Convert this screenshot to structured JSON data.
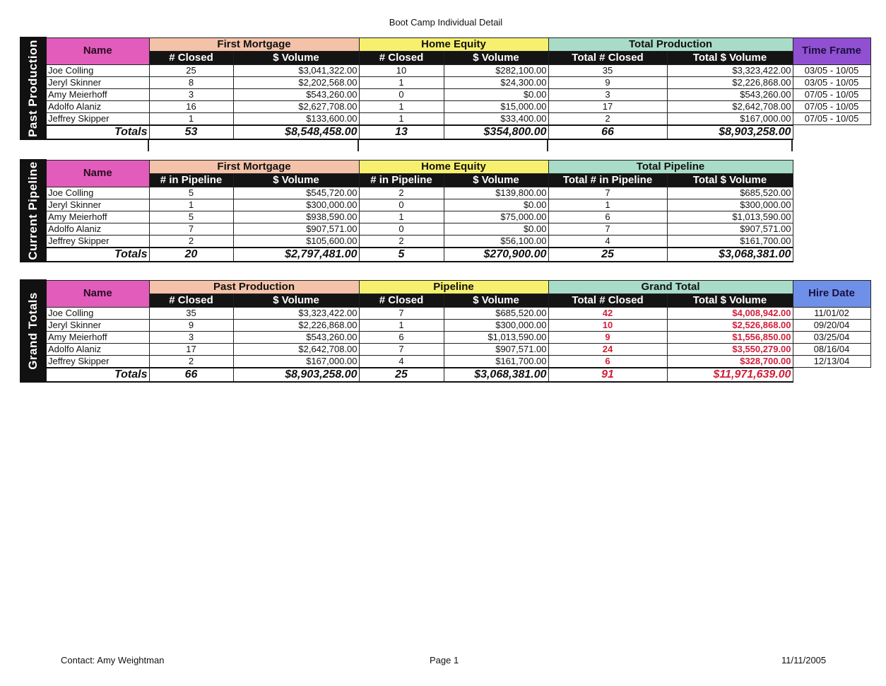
{
  "title": "Boot Camp Individual Detail",
  "colors": {
    "name_header": "#e25cbc",
    "first_mortgage": "#f4c2a8",
    "home_equity": "#f7f06e",
    "total": "#a9dcc8",
    "time_frame": "#9150d2",
    "hire_date": "#6f90e8",
    "highlight_red": "#d0203a"
  },
  "sections": [
    {
      "side_label": "Past Production",
      "name_header": "Name",
      "groups": [
        {
          "label": "First Mortgage",
          "color": "#f4c2a8"
        },
        {
          "label": "Home Equity",
          "color": "#f7f06e"
        },
        {
          "label": "Total Production",
          "color": "#a9dcc8"
        }
      ],
      "subheaders": [
        "# Closed",
        "$ Volume",
        "# Closed",
        "$ Volume",
        "Total # Closed",
        "Total $ Volume"
      ],
      "extra_header": {
        "label": "Time Frame",
        "color": "#9150d2"
      },
      "rows": [
        {
          "name": "Joe Colling",
          "values": [
            "25",
            "$3,041,322.00",
            "10",
            "$282,100.00",
            "35",
            "$3,323,422.00"
          ],
          "extra": "03/05 - 10/05"
        },
        {
          "name": "Jeryl Skinner",
          "values": [
            "8",
            "$2,202,568.00",
            "1",
            "$24,300.00",
            "9",
            "$2,226,868.00"
          ],
          "extra": "03/05 - 10/05"
        },
        {
          "name": "Amy Meierhoff",
          "values": [
            "3",
            "$543,260.00",
            "0",
            "$0.00",
            "3",
            "$543,260.00"
          ],
          "extra": "07/05 - 10/05"
        },
        {
          "name": "Adolfo Alaniz",
          "values": [
            "16",
            "$2,627,708.00",
            "1",
            "$15,000.00",
            "17",
            "$2,642,708.00"
          ],
          "extra": "07/05 - 10/05"
        },
        {
          "name": "Jeffrey Skipper",
          "values": [
            "1",
            "$133,600.00",
            "1",
            "$33,400.00",
            "2",
            "$167,000.00"
          ],
          "extra": "07/05 - 10/05"
        }
      ],
      "totals": {
        "label": "Totals",
        "values": [
          "53",
          "$8,548,458.00",
          "13",
          "$354,800.00",
          "66",
          "$8,903,258.00"
        ]
      },
      "red_total_columns": false
    },
    {
      "side_label": "Current Pipeline",
      "name_header": "Name",
      "groups": [
        {
          "label": "First Mortgage",
          "color": "#f4c2a8"
        },
        {
          "label": "Home Equity",
          "color": "#f7f06e"
        },
        {
          "label": "Total Pipeline",
          "color": "#a9dcc8"
        }
      ],
      "subheaders": [
        "# in Pipeline",
        "$ Volume",
        "# in Pipeline",
        "$ Volume",
        "Total # in Pipeline",
        "Total $ Volume"
      ],
      "extra_header": null,
      "rows": [
        {
          "name": "Joe Colling",
          "values": [
            "5",
            "$545,720.00",
            "2",
            "$139,800.00",
            "7",
            "$685,520.00"
          ]
        },
        {
          "name": "Jeryl Skinner",
          "values": [
            "1",
            "$300,000.00",
            "0",
            "$0.00",
            "1",
            "$300,000.00"
          ]
        },
        {
          "name": "Amy Meierhoff",
          "values": [
            "5",
            "$938,590.00",
            "1",
            "$75,000.00",
            "6",
            "$1,013,590.00"
          ]
        },
        {
          "name": "Adolfo Alaniz",
          "values": [
            "7",
            "$907,571.00",
            "0",
            "$0.00",
            "7",
            "$907,571.00"
          ]
        },
        {
          "name": "Jeffrey Skipper",
          "values": [
            "2",
            "$105,600.00",
            "2",
            "$56,100.00",
            "4",
            "$161,700.00"
          ]
        }
      ],
      "totals": {
        "label": "Totals",
        "values": [
          "20",
          "$2,797,481.00",
          "5",
          "$270,900.00",
          "25",
          "$3,068,381.00"
        ]
      },
      "red_total_columns": false
    },
    {
      "side_label": "Grand Totals",
      "name_header": "Name",
      "groups": [
        {
          "label": "Past Production",
          "color": "#f4c2a8"
        },
        {
          "label": "Pipeline",
          "color": "#f7f06e"
        },
        {
          "label": "Grand Total",
          "color": "#a9dcc8"
        }
      ],
      "subheaders": [
        "# Closed",
        "$ Volume",
        "# Closed",
        "$ Volume",
        "Total # Closed",
        "Total $ Volume"
      ],
      "extra_header": {
        "label": "Hire Date",
        "color": "#6f90e8"
      },
      "rows": [
        {
          "name": "Joe Colling",
          "values": [
            "35",
            "$3,323,422.00",
            "7",
            "$685,520.00",
            "42",
            "$4,008,942.00"
          ],
          "extra": "11/01/02"
        },
        {
          "name": "Jeryl Skinner",
          "values": [
            "9",
            "$2,226,868.00",
            "1",
            "$300,000.00",
            "10",
            "$2,526,868.00"
          ],
          "extra": "09/20/04"
        },
        {
          "name": "Amy Meierhoff",
          "values": [
            "3",
            "$543,260.00",
            "6",
            "$1,013,590.00",
            "9",
            "$1,556,850.00"
          ],
          "extra": "03/25/04"
        },
        {
          "name": "Adolfo Alaniz",
          "values": [
            "17",
            "$2,642,708.00",
            "7",
            "$907,571.00",
            "24",
            "$3,550,279.00"
          ],
          "extra": "08/16/04"
        },
        {
          "name": "Jeffrey Skipper",
          "values": [
            "2",
            "$167,000.00",
            "4",
            "$161,700.00",
            "6",
            "$328,700.00"
          ],
          "extra": "12/13/04"
        }
      ],
      "totals": {
        "label": "Totals",
        "values": [
          "66",
          "$8,903,258.00",
          "25",
          "$3,068,381.00",
          "91",
          "$11,971,639.00"
        ]
      },
      "red_total_columns": true
    }
  ],
  "footer": {
    "contact": "Contact: Amy Weightman",
    "page": "Page 1",
    "date": "11/11/2005"
  }
}
